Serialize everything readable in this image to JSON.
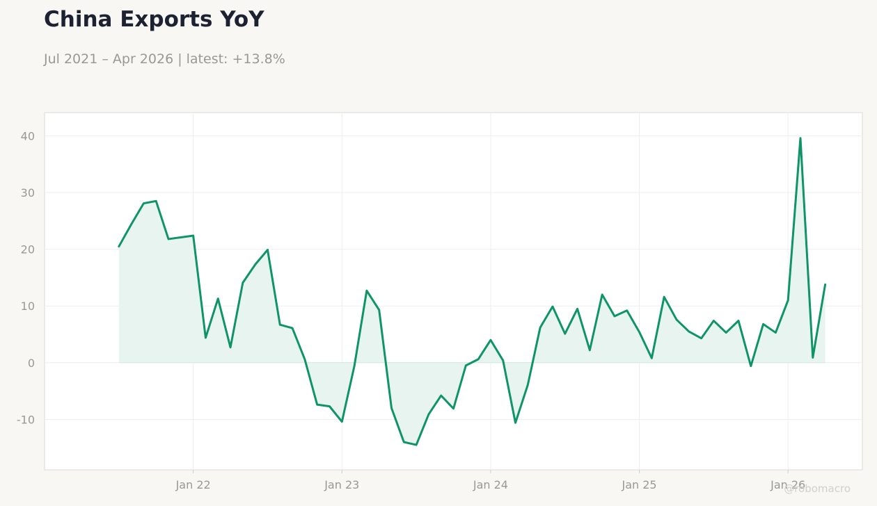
{
  "header": {
    "title": "China Exports YoY",
    "subtitle": "Jul 2021 – Apr 2026 | latest: +13.8%"
  },
  "watermark": "@robomacro",
  "colors": {
    "background": "#f8f7f4",
    "plot_background": "#ffffff",
    "line": "#0e9467",
    "fill": "#e8f4ef",
    "grid": "#eeeeee",
    "zero_line": "#cfe9de",
    "axis_text": "#9a9892",
    "title": "#1c2232"
  },
  "chart_data": {
    "type": "area",
    "x": [
      "2021-07",
      "2021-08",
      "2021-09",
      "2021-10",
      "2021-11",
      "2021-12",
      "2022-01",
      "2022-02",
      "2022-03",
      "2022-04",
      "2022-05",
      "2022-06",
      "2022-07",
      "2022-08",
      "2022-09",
      "2022-10",
      "2022-11",
      "2022-12",
      "2023-01",
      "2023-02",
      "2023-03",
      "2023-04",
      "2023-05",
      "2023-06",
      "2023-07",
      "2023-08",
      "2023-09",
      "2023-10",
      "2023-11",
      "2023-12",
      "2024-01",
      "2024-02",
      "2024-03",
      "2024-04",
      "2024-05",
      "2024-06",
      "2024-07",
      "2024-08",
      "2024-09",
      "2024-10",
      "2024-11",
      "2024-12",
      "2025-01",
      "2025-02",
      "2025-03",
      "2025-04",
      "2025-05",
      "2025-06",
      "2025-07",
      "2025-08",
      "2025-09",
      "2025-10",
      "2025-11",
      "2025-12",
      "2026-01",
      "2026-02",
      "2026-03",
      "2026-04"
    ],
    "series": [
      {
        "values": [
          20.5,
          24.4,
          28.1,
          28.5,
          21.8,
          22.1,
          22.4,
          4.4,
          11.3,
          2.7,
          14.1,
          17.3,
          19.9,
          6.7,
          6.1,
          0.6,
          -7.4,
          -7.7,
          -10.4,
          -0.6,
          12.7,
          9.3,
          -8.0,
          -14.0,
          -14.5,
          -9.1,
          -5.8,
          -8.1,
          -0.5,
          0.6,
          4.0,
          0.4,
          -10.6,
          -3.9,
          6.2,
          9.9,
          5.1,
          9.5,
          2.2,
          12.0,
          8.2,
          9.2,
          5.4,
          0.8,
          11.6,
          7.6,
          5.5,
          4.3,
          7.4,
          5.3,
          7.4,
          -0.6,
          6.8,
          5.3,
          11.0,
          39.6,
          0.9,
          13.8
        ]
      }
    ],
    "x_ticks": [
      "Jan 22",
      "Jan 23",
      "Jan 24",
      "Jan 25",
      "Jan 26"
    ],
    "y_ticks": [
      -10,
      0,
      10,
      20,
      30,
      40
    ],
    "ylim": [
      -18.9,
      44.1
    ],
    "xlim": [
      "2021-01",
      "2026-07"
    ],
    "xlabel": "",
    "ylabel": "",
    "grid": true,
    "legend": "none"
  }
}
